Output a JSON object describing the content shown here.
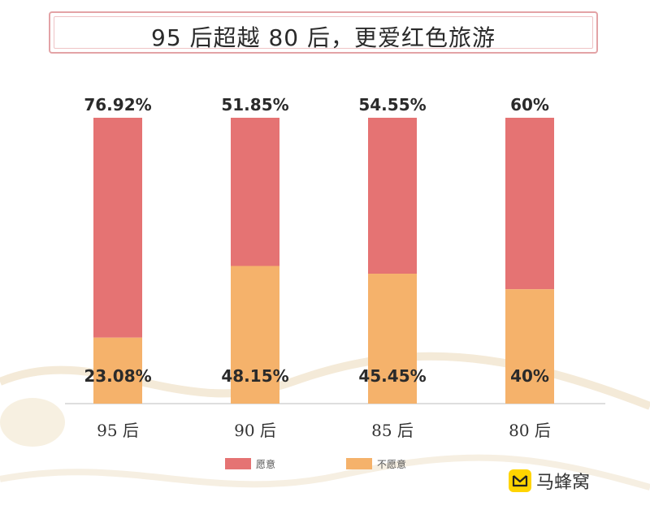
{
  "title": "95 后超越 80 后，更爱红色旅游",
  "logo_text": "马蜂窝",
  "colors": {
    "yes": "#e57373",
    "no": "#f5b26b",
    "frame": "#e3a3a6",
    "axis": "#bdbdbd",
    "text": "#2a2a2a"
  },
  "chart_data": {
    "type": "bar",
    "stacked": true,
    "categories": [
      "95 后",
      "90 后",
      "85 后",
      "80 后"
    ],
    "series": [
      {
        "name": "不愿意",
        "values": [
          23.08,
          48.15,
          45.45,
          40
        ],
        "labels": [
          "23.08%",
          "48.15%",
          "45.45%",
          "40%"
        ]
      },
      {
        "name": "愿意",
        "values": [
          76.92,
          51.85,
          54.55,
          60
        ],
        "labels": [
          "76.92%",
          "51.85%",
          "54.55%",
          "60%"
        ]
      }
    ],
    "ylim": [
      0,
      100
    ],
    "legend_position": "bottom",
    "grid": false
  }
}
